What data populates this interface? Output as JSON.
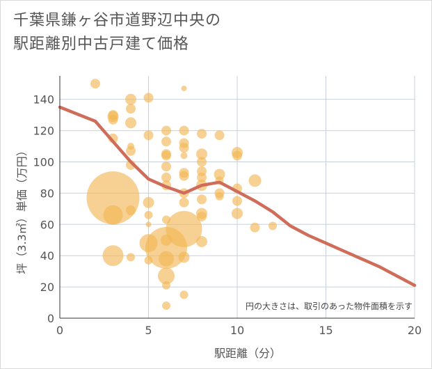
{
  "header": {
    "title_line1": "千葉県鎌ヶ谷市道野辺中央の",
    "title_line2": "駅距離別中古戸建て価格"
  },
  "chart_data": {
    "type": "scatter",
    "xlabel": "駅距離（分）",
    "ylabel": "坪（3.3㎡）単価（万円）",
    "xlim": [
      0,
      20
    ],
    "ylim": [
      0,
      155
    ],
    "x_ticks": [
      0,
      5,
      10,
      15,
      20
    ],
    "y_ticks": [
      0,
      20,
      40,
      60,
      80,
      100,
      120,
      140
    ],
    "note": "円の大きさは、取引のあった物件面積を示す",
    "colors": {
      "bubble": "#f2b451",
      "line": "#d06d5a",
      "grid": "#c8d0dc",
      "axis": "#333333"
    },
    "bubbles": [
      {
        "x": 2,
        "y": 150,
        "r": 7
      },
      {
        "x": 3,
        "y": 130,
        "r": 7
      },
      {
        "x": 3,
        "y": 129,
        "r": 8
      },
      {
        "x": 3,
        "y": 127,
        "r": 7
      },
      {
        "x": 3,
        "y": 115,
        "r": 7
      },
      {
        "x": 3,
        "y": 77,
        "r": 38
      },
      {
        "x": 3,
        "y": 66,
        "r": 14
      },
      {
        "x": 3,
        "y": 40,
        "r": 15
      },
      {
        "x": 4,
        "y": 140,
        "r": 8
      },
      {
        "x": 4,
        "y": 134,
        "r": 7
      },
      {
        "x": 4,
        "y": 125,
        "r": 8
      },
      {
        "x": 4,
        "y": 110,
        "r": 5
      },
      {
        "x": 4,
        "y": 107,
        "r": 7
      },
      {
        "x": 4,
        "y": 98,
        "r": 7
      },
      {
        "x": 4,
        "y": 69,
        "r": 7
      },
      {
        "x": 4,
        "y": 39,
        "r": 6
      },
      {
        "x": 5,
        "y": 141,
        "r": 7
      },
      {
        "x": 5,
        "y": 117,
        "r": 7
      },
      {
        "x": 5,
        "y": 74,
        "r": 8
      },
      {
        "x": 5,
        "y": 66,
        "r": 6
      },
      {
        "x": 5,
        "y": 60,
        "r": 4
      },
      {
        "x": 5,
        "y": 48,
        "r": 13
      },
      {
        "x": 5,
        "y": 37,
        "r": 6
      },
      {
        "x": 6,
        "y": 120,
        "r": 7
      },
      {
        "x": 6,
        "y": 113,
        "r": 7
      },
      {
        "x": 6,
        "y": 105,
        "r": 7
      },
      {
        "x": 6,
        "y": 104,
        "r": 7
      },
      {
        "x": 6,
        "y": 97,
        "r": 7
      },
      {
        "x": 6,
        "y": 90,
        "r": 7
      },
      {
        "x": 6,
        "y": 85,
        "r": 7
      },
      {
        "x": 6,
        "y": 63,
        "r": 6
      },
      {
        "x": 6,
        "y": 50,
        "r": 8
      },
      {
        "x": 6,
        "y": 45,
        "r": 30
      },
      {
        "x": 6,
        "y": 38,
        "r": 11
      },
      {
        "x": 6,
        "y": 27,
        "r": 12
      },
      {
        "x": 6,
        "y": 21,
        "r": 6
      },
      {
        "x": 6,
        "y": 8,
        "r": 6
      },
      {
        "x": 7,
        "y": 147,
        "r": 4
      },
      {
        "x": 7,
        "y": 120,
        "r": 7
      },
      {
        "x": 7,
        "y": 112,
        "r": 7
      },
      {
        "x": 7,
        "y": 109,
        "r": 7
      },
      {
        "x": 7,
        "y": 104,
        "r": 5
      },
      {
        "x": 7,
        "y": 93,
        "r": 7
      },
      {
        "x": 7,
        "y": 91,
        "r": 7
      },
      {
        "x": 7,
        "y": 80,
        "r": 7
      },
      {
        "x": 7,
        "y": 74,
        "r": 7
      },
      {
        "x": 7,
        "y": 57,
        "r": 26
      },
      {
        "x": 7,
        "y": 39,
        "r": 8
      },
      {
        "x": 7,
        "y": 15,
        "r": 6
      },
      {
        "x": 8,
        "y": 118,
        "r": 7
      },
      {
        "x": 8,
        "y": 105,
        "r": 8
      },
      {
        "x": 8,
        "y": 100,
        "r": 7
      },
      {
        "x": 8,
        "y": 94,
        "r": 7
      },
      {
        "x": 8,
        "y": 90,
        "r": 7
      },
      {
        "x": 8,
        "y": 85,
        "r": 8
      },
      {
        "x": 8,
        "y": 76,
        "r": 7
      },
      {
        "x": 8,
        "y": 67,
        "r": 8
      },
      {
        "x": 8,
        "y": 65,
        "r": 7
      },
      {
        "x": 8,
        "y": 49,
        "r": 8
      },
      {
        "x": 9,
        "y": 117,
        "r": 7
      },
      {
        "x": 9,
        "y": 92,
        "r": 8
      },
      {
        "x": 9,
        "y": 88,
        "r": 6
      },
      {
        "x": 9,
        "y": 80,
        "r": 7
      },
      {
        "x": 9,
        "y": 78,
        "r": 6
      },
      {
        "x": 10,
        "y": 106,
        "r": 8
      },
      {
        "x": 10,
        "y": 104,
        "r": 7
      },
      {
        "x": 10,
        "y": 83,
        "r": 7
      },
      {
        "x": 10,
        "y": 75,
        "r": 7
      },
      {
        "x": 10,
        "y": 67,
        "r": 8
      },
      {
        "x": 11,
        "y": 88,
        "r": 9
      },
      {
        "x": 11,
        "y": 58,
        "r": 7
      },
      {
        "x": 12,
        "y": 59,
        "r": 6
      }
    ],
    "trend": {
      "x": [
        0,
        2,
        3,
        4,
        5,
        6,
        7,
        8,
        9,
        10,
        11,
        12,
        13,
        14,
        15,
        16,
        17,
        18,
        19,
        20
      ],
      "y": [
        135,
        126,
        113,
        100,
        89,
        84,
        80,
        85,
        87,
        81,
        75,
        68,
        59,
        53,
        48,
        43,
        38,
        33,
        27,
        21
      ]
    }
  }
}
